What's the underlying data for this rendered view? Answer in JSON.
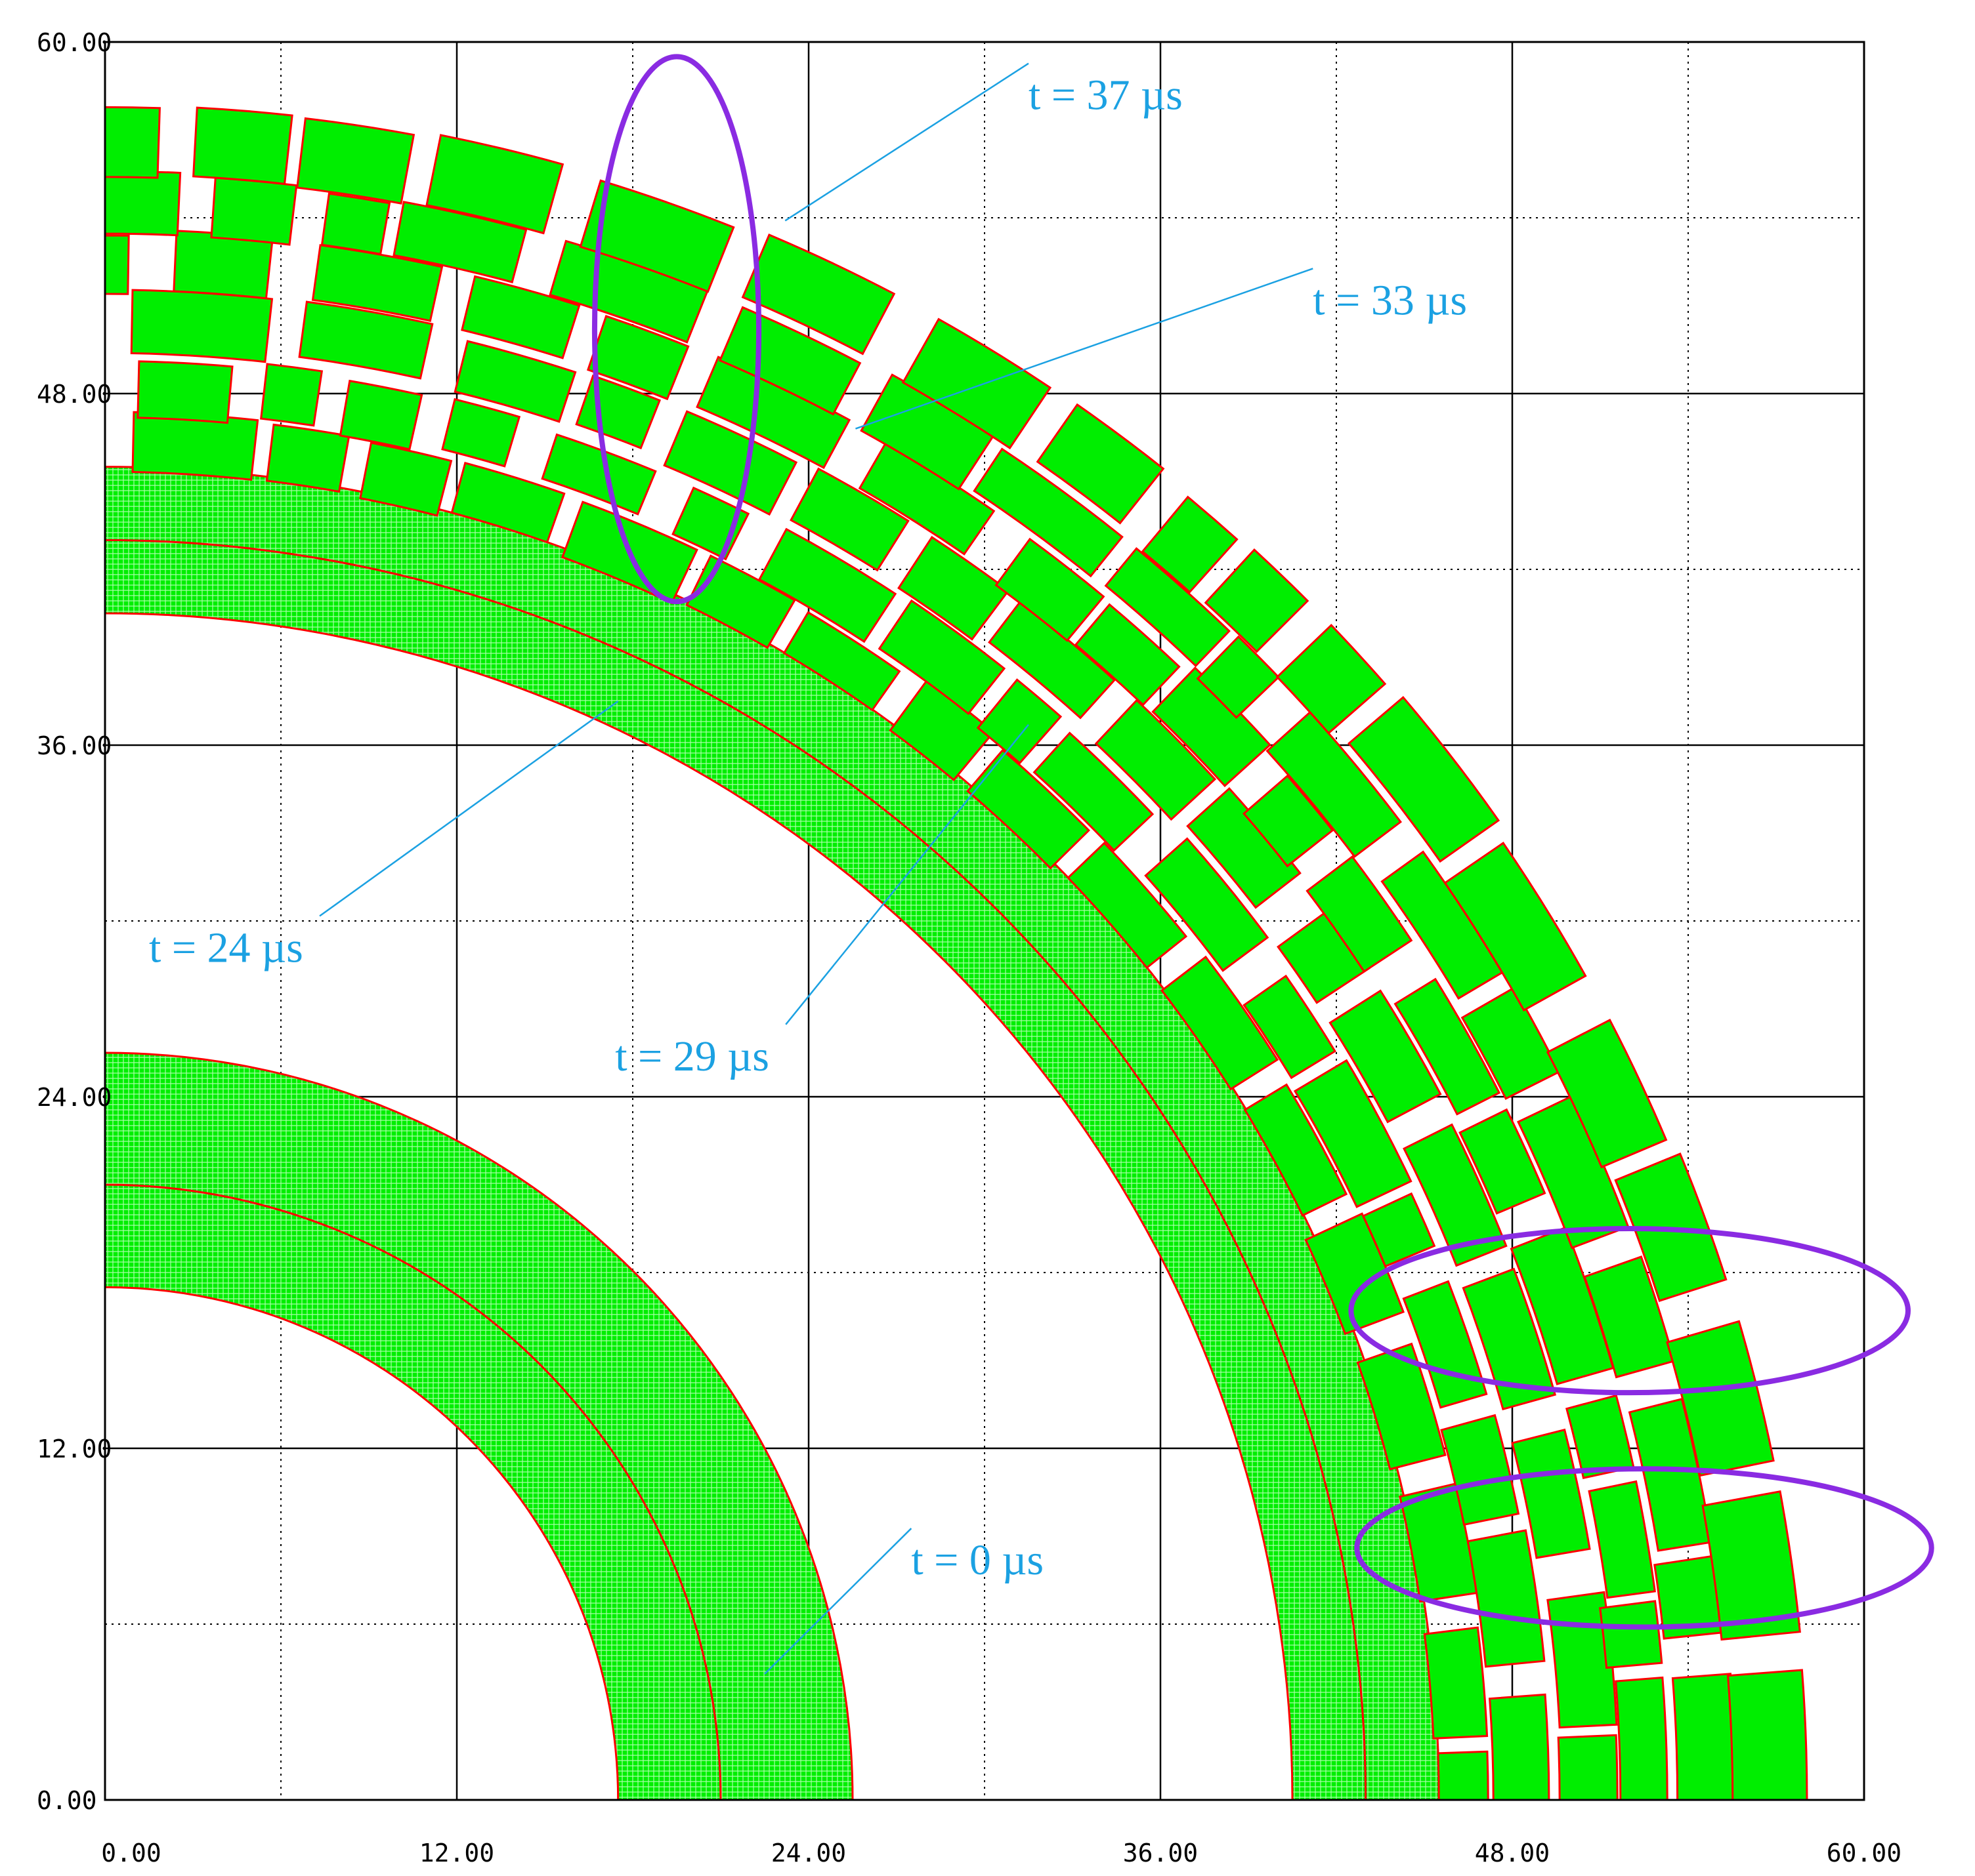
{
  "chart_data": {
    "type": "area",
    "title": "",
    "xlabel": "",
    "ylabel": "",
    "xlim": [
      0,
      60
    ],
    "ylim": [
      0,
      60
    ],
    "x_ticks": [
      "0.00",
      "12.00",
      "24.00",
      "36.00",
      "48.00",
      "60.00"
    ],
    "y_ticks": [
      "0.00",
      "12.00",
      "24.00",
      "36.00",
      "48.00",
      "60.00"
    ],
    "grid": {
      "major_step": 12,
      "minor_dotted_step": 6
    },
    "colors": {
      "fill": "#00ee00",
      "edge": "#ff0000",
      "annotation": "#1ba1e2",
      "highlight": "#8a2be2",
      "grid": "#000000",
      "background": "#ffffff"
    },
    "series": [
      {
        "name": "t = 0 µs",
        "shells": [
          {
            "r_inner": 17.5,
            "r_mid": 21.0,
            "r_outer": 25.5
          }
        ],
        "fragmented": false
      },
      {
        "name": "t = 24 µs",
        "shells": [
          {
            "r_inner": 40.5,
            "r_mid": 43.0,
            "r_outer": 45.5
          }
        ],
        "fragmented": false
      },
      {
        "name": "t = 29 µs",
        "shells": [
          {
            "r_inner": 45.3,
            "r_mid": 47.3,
            "r_outer": 49.3
          }
        ],
        "fragmented": true
      },
      {
        "name": "t = 33 µs",
        "shells": [
          {
            "r_inner": 49.5,
            "r_mid": 51.5,
            "r_outer": 53.5
          }
        ],
        "fragmented": true
      },
      {
        "name": "t = 37 µs",
        "shells": [
          {
            "r_inner": 53.5,
            "r_mid": 55.5,
            "r_outer": 58.0
          }
        ],
        "fragmented": true
      }
    ],
    "annotations": [
      {
        "text": "t = 37 µs",
        "text_at": [
          31.5,
          57.7
        ],
        "point_to": [
          23.2,
          53.9
        ]
      },
      {
        "text": "t = 33 µs",
        "text_at": [
          41.2,
          50.7
        ],
        "point_to": [
          25.6,
          46.8
        ]
      },
      {
        "text": "t = 24 µs",
        "text_at": [
          1.5,
          28.6
        ],
        "point_to": [
          17.5,
          37.5
        ]
      },
      {
        "text": "t = 29 µs",
        "text_at": [
          17.4,
          24.9
        ],
        "point_to": [
          31.5,
          36.7
        ]
      },
      {
        "text": "t = 0 µs",
        "text_at": [
          27.5,
          7.7
        ],
        "point_to": [
          22.5,
          4.3
        ]
      }
    ],
    "highlight_ellipses": [
      {
        "center": [
          19.5,
          50.2
        ],
        "rx": 2.8,
        "ry": 9.3
      },
      {
        "center": [
          52.0,
          16.7
        ],
        "rx": 9.5,
        "ry": 2.8
      },
      {
        "center": [
          52.5,
          8.6
        ],
        "rx": 9.8,
        "ry": 2.7
      }
    ]
  }
}
